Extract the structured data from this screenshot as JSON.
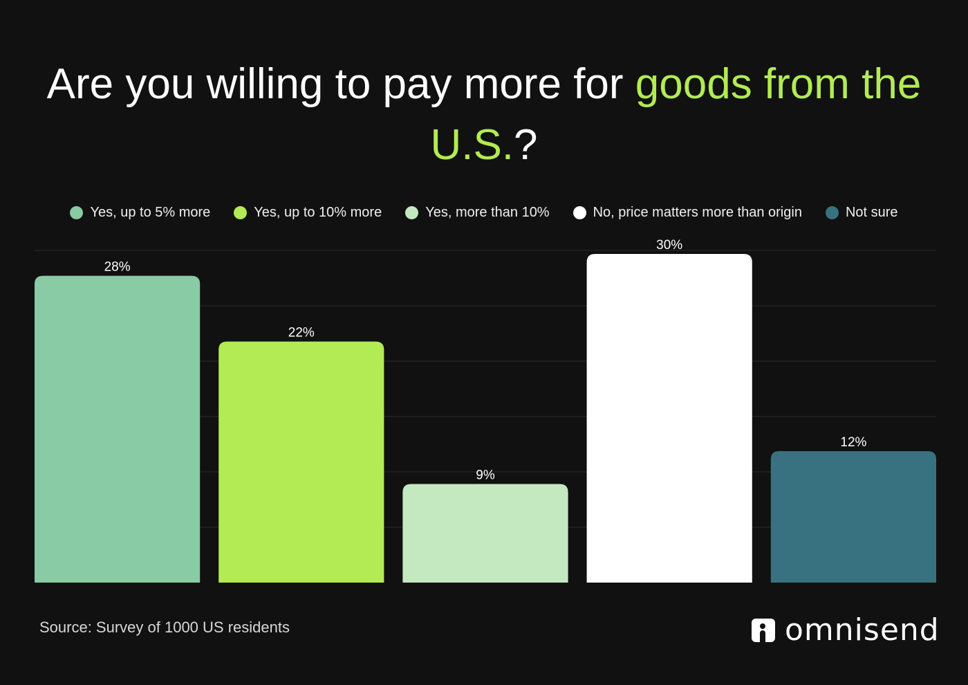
{
  "title": {
    "prefix": "Are you willing to pay more for ",
    "highlight": "goods from the U.S.",
    "suffix": "?",
    "highlight_color": "#b2eb53"
  },
  "chart_data": {
    "type": "bar",
    "categories": [
      "Yes, up to 5% more",
      "Yes, up to 10% more",
      "Yes, more than 10%",
      "No, price matters more than origin",
      "Not sure"
    ],
    "values": [
      28,
      22,
      9,
      30,
      12
    ],
    "data_labels": [
      "28%",
      "22%",
      "9%",
      "30%",
      "12%"
    ],
    "colors": [
      "#88cba5",
      "#b2eb53",
      "#c4e9c0",
      "#ffffff",
      "#387280"
    ],
    "ylim": [
      0,
      30
    ],
    "grid": true,
    "legend": "top",
    "xlabel": "",
    "ylabel": ""
  },
  "footer": {
    "source": "Source: Survey of 1000 US residents",
    "logo": "omnisend"
  },
  "background": "#111111"
}
